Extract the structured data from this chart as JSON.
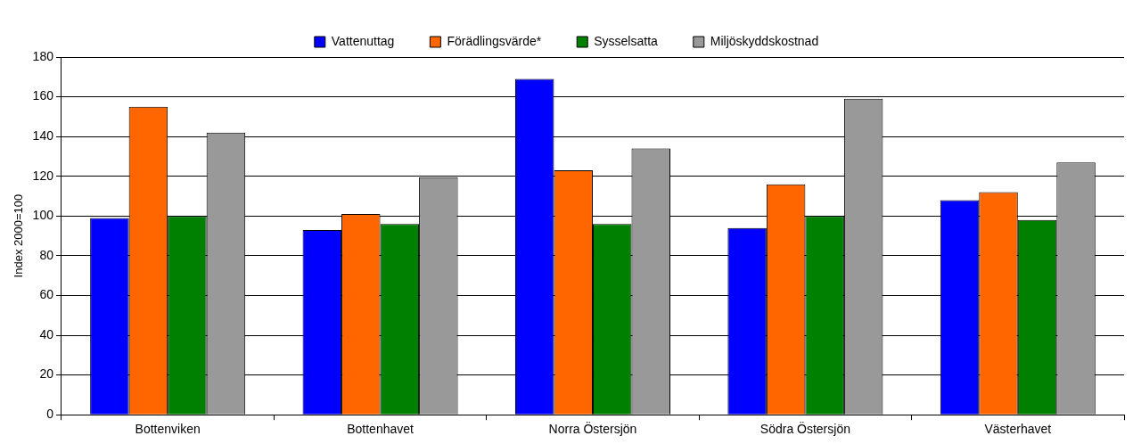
{
  "chart_data": {
    "type": "bar",
    "ylabel": "Index 2000=100",
    "categories": [
      "Bottenviken",
      "Bottenhavet",
      "Norra Östersjön",
      "Södra Östersjön",
      "Västerhavet"
    ],
    "series": [
      {
        "name": "Vattenuttag",
        "color": "#0000ff",
        "values": [
          99,
          93,
          169,
          94,
          108
        ]
      },
      {
        "name": "Förädlingsvärde*",
        "color": "#ff6600",
        "values": [
          155,
          101,
          123,
          116,
          112
        ]
      },
      {
        "name": "Sysselsatta",
        "color": "#008000",
        "values": [
          100,
          96,
          96,
          100,
          98
        ]
      },
      {
        "name": "Miljöskyddskostnad",
        "color": "#999999",
        "values": [
          142,
          119.5,
          134,
          159,
          127
        ]
      }
    ],
    "ylim": [
      0,
      180
    ],
    "yticks": [
      0,
      20,
      40,
      60,
      80,
      100,
      120,
      140,
      160,
      180
    ],
    "grid": "y",
    "legend": "top"
  }
}
